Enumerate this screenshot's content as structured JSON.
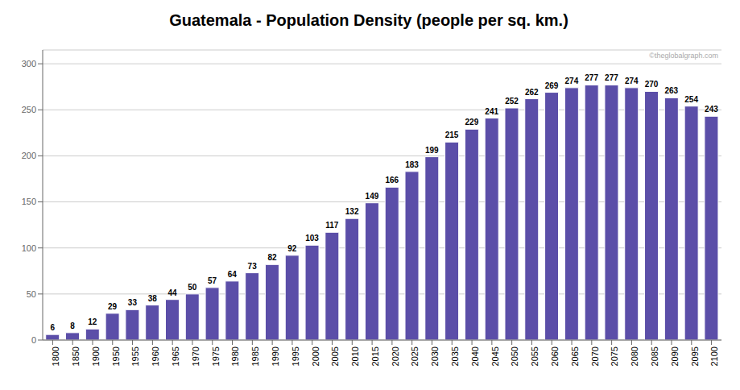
{
  "chart_data": {
    "type": "bar",
    "title": "Guatemala - Population Density (people per sq. km.)",
    "categories": [
      "1800",
      "1850",
      "1900",
      "1950",
      "1955",
      "1960",
      "1965",
      "1970",
      "1975",
      "1980",
      "1985",
      "1990",
      "1995",
      "2000",
      "2005",
      "2010",
      "2015",
      "2020",
      "2025",
      "2030",
      "2035",
      "2040",
      "2045",
      "2050",
      "2055",
      "2060",
      "2065",
      "2070",
      "2075",
      "2080",
      "2085",
      "2090",
      "2095",
      "2100"
    ],
    "values": [
      6,
      8,
      12,
      29,
      33,
      38,
      44,
      50,
      57,
      64,
      73,
      82,
      92,
      103,
      117,
      132,
      149,
      166,
      183,
      199,
      215,
      229,
      241,
      252,
      262,
      269,
      274,
      277,
      277,
      274,
      270,
      263,
      254,
      243
    ],
    "color": "#5b4ea8",
    "ylim": [
      0,
      315
    ],
    "yticks": [
      0,
      50,
      100,
      150,
      200,
      250,
      300
    ],
    "grid": true,
    "data_labels": true,
    "annotations": [
      "©theglobalgraph.com"
    ]
  }
}
